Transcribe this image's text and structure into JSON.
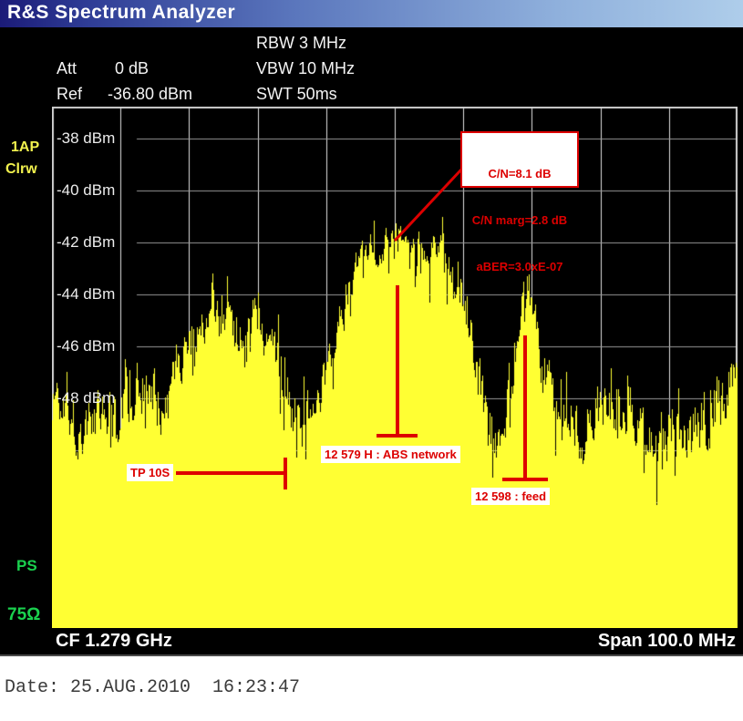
{
  "title_bar": {
    "title": "R&S Spectrum Analyzer"
  },
  "header": {
    "att_label": "Att",
    "att_value": "0 dB",
    "ref_label": "Ref",
    "ref_value": "-36.80 dBm",
    "rbw": "RBW 3 MHz",
    "vbw": "VBW 10 MHz",
    "swt": "SWT 50ms"
  },
  "side_labels": {
    "trace1": "1AP",
    "trace2": "Clrw",
    "ps": "PS",
    "impedance": "75Ω"
  },
  "footer": {
    "cf": "CF 1.279 GHz",
    "span": "Span 100.0 MHz"
  },
  "date_line": "Date: 25.AUG.2010  16:23:47",
  "colors": {
    "titlebar_left": "#1b1b78",
    "titlebar_right": "#aecdea",
    "screen_bg": "#000000",
    "trace_yellow": "#ffff33",
    "grid_horizontal": "#989898",
    "grid_vertical": "#e0e0e0",
    "grid_border": "#d0d0d0",
    "annotation_red": "#dd0000",
    "label_green": "#1ad14e",
    "label_yellow": "#f2f24e",
    "text_white": "#f4f4f4"
  },
  "chart_data": {
    "type": "area",
    "title": "Spectrum trace 1AP Clrw",
    "x_axis": {
      "center_frequency": "CF 1.279 GHz",
      "span": "Span 100.0 MHz",
      "divisions": 10,
      "grid": true
    },
    "y_axis": {
      "ref_level_dbm": -36.8,
      "top_dbm": -36.8,
      "bottom_dbm": -56.8,
      "db_per_div": 2,
      "divisions": 10,
      "tick_labels": [
        "-38 dBm",
        "-40 dBm",
        "-42 dBm",
        "-44 dBm",
        "-46 dBm",
        "-48 dBm"
      ]
    },
    "settings": {
      "att": "0 dB",
      "ref": "-36.80 dBm",
      "rbw": "3 MHz",
      "vbw": "10 MHz",
      "swt": "50ms"
    },
    "envelope_comment": "points are [x_fraction_of_span, mean_level_dbm, noise_amplitude_db]",
    "envelope": [
      [
        0.0,
        -48.2,
        1.0
      ],
      [
        0.011,
        -47.5,
        1.0
      ],
      [
        0.024,
        -48.7,
        1.0
      ],
      [
        0.037,
        -49.2,
        1.0
      ],
      [
        0.051,
        -49.6,
        1.0
      ],
      [
        0.064,
        -48.5,
        1.0
      ],
      [
        0.073,
        -47.7,
        1.0
      ],
      [
        0.084,
        -48.7,
        1.0
      ],
      [
        0.097,
        -48.4,
        1.0
      ],
      [
        0.11,
        -47.8,
        1.0
      ],
      [
        0.124,
        -47.5,
        1.0
      ],
      [
        0.134,
        -48.0,
        0.9
      ],
      [
        0.144,
        -48.4,
        0.9
      ],
      [
        0.157,
        -48.2,
        0.9
      ],
      [
        0.17,
        -47.5,
        0.8
      ],
      [
        0.184,
        -46.6,
        0.7
      ],
      [
        0.197,
        -45.9,
        0.7
      ],
      [
        0.21,
        -45.2,
        0.7
      ],
      [
        0.223,
        -44.9,
        0.7
      ],
      [
        0.237,
        -44.7,
        0.7
      ],
      [
        0.25,
        -45.2,
        0.7
      ],
      [
        0.263,
        -45.6,
        0.7
      ],
      [
        0.277,
        -45.2,
        0.7
      ],
      [
        0.29,
        -44.9,
        0.7
      ],
      [
        0.303,
        -45.0,
        0.7
      ],
      [
        0.316,
        -45.9,
        0.8
      ],
      [
        0.33,
        -46.8,
        0.9
      ],
      [
        0.343,
        -47.8,
        0.9
      ],
      [
        0.356,
        -48.4,
        0.9
      ],
      [
        0.37,
        -48.4,
        0.9
      ],
      [
        0.383,
        -47.8,
        0.9
      ],
      [
        0.396,
        -47.5,
        0.8
      ],
      [
        0.41,
        -46.6,
        0.7
      ],
      [
        0.423,
        -45.0,
        0.6
      ],
      [
        0.436,
        -43.6,
        0.6
      ],
      [
        0.449,
        -42.8,
        0.5
      ],
      [
        0.463,
        -42.4,
        0.5
      ],
      [
        0.476,
        -42.2,
        0.5
      ],
      [
        0.489,
        -42.0,
        0.5
      ],
      [
        0.503,
        -41.9,
        0.5
      ],
      [
        0.516,
        -42.0,
        0.5
      ],
      [
        0.529,
        -41.9,
        0.5
      ],
      [
        0.543,
        -42.2,
        0.5
      ],
      [
        0.556,
        -42.0,
        0.5
      ],
      [
        0.569,
        -42.2,
        0.5
      ],
      [
        0.582,
        -42.6,
        0.6
      ],
      [
        0.596,
        -43.6,
        0.7
      ],
      [
        0.609,
        -45.4,
        0.8
      ],
      [
        0.622,
        -47.5,
        0.9
      ],
      [
        0.636,
        -49.2,
        1.0
      ],
      [
        0.649,
        -49.9,
        1.0
      ],
      [
        0.658,
        -49.6,
        1.0
      ],
      [
        0.669,
        -47.8,
        0.8
      ],
      [
        0.68,
        -45.7,
        0.7
      ],
      [
        0.69,
        -43.8,
        0.6
      ],
      [
        0.701,
        -44.3,
        0.7
      ],
      [
        0.711,
        -46.1,
        0.8
      ],
      [
        0.722,
        -47.5,
        0.9
      ],
      [
        0.735,
        -48.5,
        1.0
      ],
      [
        0.749,
        -48.9,
        1.0
      ],
      [
        0.762,
        -48.7,
        1.0
      ],
      [
        0.775,
        -49.1,
        1.0
      ],
      [
        0.789,
        -48.7,
        1.0
      ],
      [
        0.802,
        -48.5,
        1.0
      ],
      [
        0.815,
        -48.2,
        1.0
      ],
      [
        0.828,
        -47.9,
        1.0
      ],
      [
        0.842,
        -48.2,
        1.0
      ],
      [
        0.855,
        -48.7,
        1.0
      ],
      [
        0.868,
        -49.1,
        1.0
      ],
      [
        0.882,
        -48.9,
        1.0
      ],
      [
        0.895,
        -49.1,
        1.0
      ],
      [
        0.908,
        -48.9,
        1.0
      ],
      [
        0.921,
        -49.1,
        1.0
      ],
      [
        0.935,
        -48.7,
        1.0
      ],
      [
        0.948,
        -48.9,
        1.0
      ],
      [
        0.961,
        -48.5,
        1.0
      ],
      [
        0.975,
        -48.2,
        1.0
      ],
      [
        0.984,
        -47.7,
        0.9
      ],
      [
        0.992,
        -47.3,
        0.9
      ],
      [
        1.0,
        -47.8,
        0.9
      ]
    ],
    "noise": {
      "seed": 1337,
      "spike_prob": 0.1,
      "spike_db": 1.1,
      "notch_prob": 0.1,
      "notch_db": 1.8
    },
    "annotations": {
      "callout": {
        "lines": [
          "C/N=8.1 dB",
          "C/N marg=2.8 dB",
          "aBER=3.0xE-07"
        ]
      },
      "tp": {
        "label": "TP 10S"
      },
      "marker1": {
        "label": "12 579 H : ABS network",
        "x_frac": 0.504
      },
      "marker2": {
        "label": "12 598 : feed",
        "x_frac": 0.69
      }
    }
  }
}
